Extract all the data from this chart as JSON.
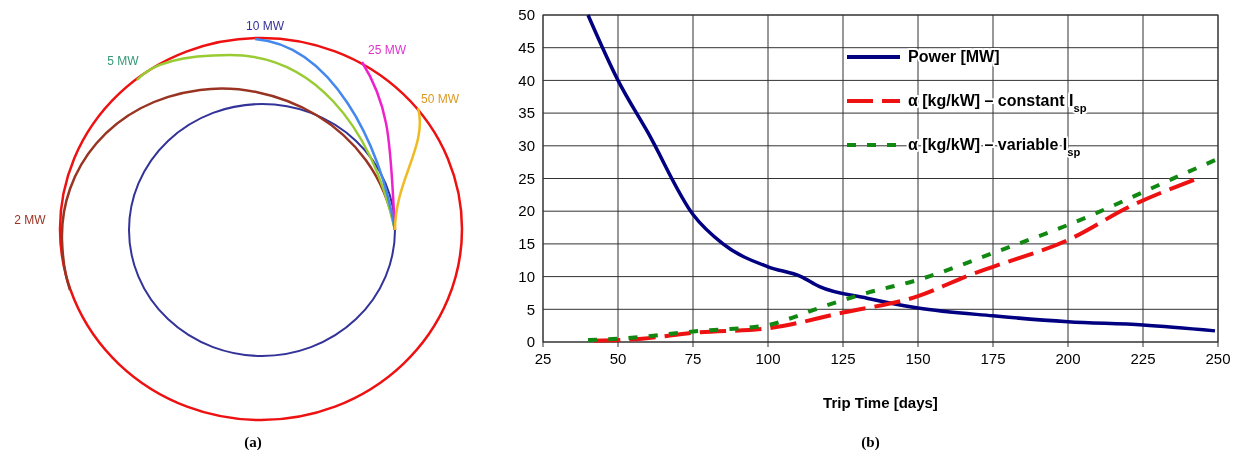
{
  "chart_data": [
    {
      "type": "other",
      "annotations": [
        "2 MW",
        "5 MW",
        "10 MW",
        "25 MW",
        "50 MW",
        "(a)"
      ]
    },
    {
      "type": "line",
      "xlabel": "Trip Time [days]",
      "annotations": [
        "(b)"
      ],
      "xlim": [
        25,
        250
      ],
      "xticks": [
        25,
        50,
        75,
        100,
        125,
        150,
        175,
        200,
        225,
        250
      ],
      "ylim": [
        0,
        50
      ],
      "yticks": [
        0,
        5,
        10,
        15,
        20,
        25,
        30,
        35,
        40,
        45,
        50
      ],
      "grid": true,
      "legend": "top right",
      "series": [
        {
          "name": "Power [MW]",
          "color": "#000080",
          "line_style": "solid",
          "x": [
            40,
            50,
            60,
            75,
            85,
            100,
            111,
            117,
            133,
            150,
            175,
            200,
            225,
            249
          ],
          "values": [
            50,
            40,
            32,
            19.5,
            15,
            11.5,
            10,
            8.5,
            6.7,
            5.2,
            4.0,
            3.1,
            2.6,
            1.7
          ]
        },
        {
          "name": "α [kg/kW] – constant I$_{sp}$",
          "color": "#ee1111",
          "line_style": "dashed",
          "x": [
            42,
            58,
            75,
            100,
            125,
            150,
            167,
            175,
            200,
            221,
            242
          ],
          "values": [
            0.2,
            0.5,
            1.4,
            2.1,
            4.5,
            7.0,
            10.2,
            11.5,
            15.6,
            20.8,
            24.8
          ]
        },
        {
          "name": "α [kg/kW] – variable I$_{sp}$",
          "color": "#118811",
          "line_style": "dotted",
          "x": [
            40,
            50,
            75,
            100,
            108,
            117,
            133,
            150,
            175,
            200,
            240,
            249
          ],
          "values": [
            0.3,
            0.5,
            1.6,
            2.6,
            3.7,
            5.2,
            7.5,
            9.5,
            13.6,
            17.9,
            26,
            27.8
          ]
        }
      ]
    }
  ]
}
